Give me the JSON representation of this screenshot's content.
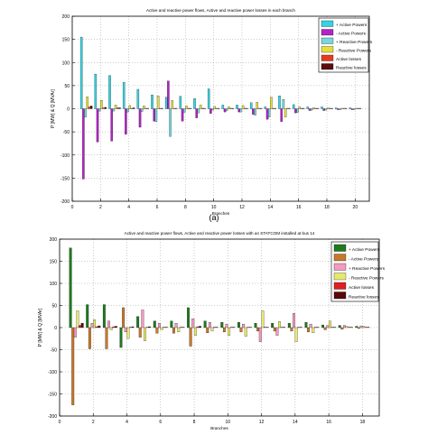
{
  "caption_a": "(a)",
  "chart_data": [
    {
      "type": "bar",
      "title": "Active and reactive power flows, Active and reactive power losses in each branch",
      "xlabel": "Branches",
      "ylabel": "P [MW] & Q [MVAr]",
      "xlim": [
        0,
        21
      ],
      "ylim": [
        -200,
        200
      ],
      "x_ticks": [
        0,
        2,
        4,
        6,
        8,
        10,
        12,
        14,
        16,
        18,
        20
      ],
      "y_ticks": [
        -200,
        -150,
        -100,
        -50,
        0,
        50,
        100,
        150,
        200
      ],
      "grid": true,
      "legend_position": "top-right",
      "categories": [
        1,
        2,
        3,
        4,
        5,
        6,
        7,
        8,
        9,
        10,
        11,
        12,
        13,
        14,
        15,
        16,
        17,
        18,
        19,
        20
      ],
      "series": [
        {
          "name": "+ Active Powers",
          "color": "#35d3e3",
          "values": [
            155,
            75,
            72,
            57,
            42,
            30,
            25,
            27,
            22,
            43,
            8,
            8,
            13,
            4,
            28,
            9,
            4,
            4,
            2,
            2
          ]
        },
        {
          "name": "- Active Powers",
          "color": "#b422c9",
          "values": [
            -152,
            -72,
            -70,
            -55,
            -40,
            -27,
            60,
            -27,
            -20,
            -10,
            -7,
            -7,
            -12,
            -23,
            -28,
            -9,
            -4,
            -4,
            -2,
            -2
          ]
        },
        {
          "name": "+ Reactive Powers",
          "color": "#79d6dc",
          "values": [
            -18,
            -5,
            -5,
            -7,
            -6,
            -28,
            -60,
            -8,
            -9,
            -3,
            -4,
            -7,
            -14,
            -18,
            20,
            -8,
            -3,
            -3,
            -2,
            -2
          ]
        },
        {
          "name": "- Reactive Powers",
          "color": "#e3e03c",
          "values": [
            26,
            18,
            8,
            7,
            6,
            28,
            18,
            6,
            8,
            5,
            4,
            7,
            14,
            25,
            -18,
            4,
            2,
            2,
            1,
            1
          ]
        },
        {
          "name": "Active losses",
          "color": "#e63c1f",
          "values": [
            4,
            2,
            2,
            1,
            1,
            1,
            1,
            1,
            1,
            1,
            1,
            1,
            1,
            1,
            1,
            1,
            1,
            1,
            1,
            1
          ]
        },
        {
          "name": "Reactive losses",
          "color": "#5b0c0c",
          "values": [
            6,
            3,
            2,
            2,
            1,
            1,
            1,
            1,
            1,
            1,
            1,
            1,
            1,
            1,
            1,
            1,
            1,
            1,
            1,
            1
          ]
        }
      ]
    },
    {
      "type": "bar",
      "title": "Active and reactive power flows, Active and reactive power losses with an STATCOM installed at bus 14",
      "xlabel": "Branches",
      "ylabel": "P [MW] & Q [MVAr]",
      "xlim": [
        0,
        19
      ],
      "ylim": [
        -200,
        200
      ],
      "x_ticks": [
        0,
        2,
        4,
        6,
        8,
        10,
        12,
        14,
        16,
        18
      ],
      "y_ticks": [
        -200,
        -150,
        -100,
        -50,
        0,
        50,
        100,
        150,
        200
      ],
      "grid": true,
      "legend_position": "top-right",
      "categories": [
        1,
        2,
        3,
        4,
        5,
        6,
        7,
        8,
        9,
        10,
        11,
        12,
        13,
        14,
        15,
        16,
        17,
        18
      ],
      "series": [
        {
          "name": "+ Active Powers",
          "color": "#1f7a1f",
          "values": [
            180,
            52,
            52,
            -45,
            25,
            15,
            15,
            45,
            15,
            12,
            12,
            10,
            10,
            10,
            12,
            6,
            5,
            3
          ]
        },
        {
          "name": "- Active Powers",
          "color": "#c8782a",
          "values": [
            -175,
            -48,
            -48,
            45,
            -22,
            -13,
            -13,
            -42,
            -12,
            -10,
            -10,
            -8,
            -8,
            -8,
            -10,
            -5,
            -4,
            -2
          ]
        },
        {
          "name": "+ Reactive Powers",
          "color": "#f29ac0",
          "values": [
            -22,
            10,
            15,
            -10,
            40,
            10,
            10,
            20,
            12,
            8,
            8,
            -32,
            -18,
            32,
            8,
            5,
            5,
            4
          ]
        },
        {
          "name": "- Reactive Powers",
          "color": "#e8e870",
          "values": [
            38,
            18,
            -5,
            -25,
            -30,
            -5,
            -10,
            -18,
            -8,
            -18,
            -20,
            38,
            14,
            -32,
            -12,
            15,
            3,
            3
          ]
        },
        {
          "name": "Active losses",
          "color": "#e02020",
          "values": [
            5,
            2,
            2,
            1,
            1,
            1,
            1,
            2,
            1,
            1,
            1,
            1,
            1,
            1,
            1,
            1,
            1,
            1
          ]
        },
        {
          "name": "Reactive losses",
          "color": "#5a0a0a",
          "values": [
            10,
            4,
            3,
            2,
            2,
            1,
            1,
            3,
            1,
            1,
            1,
            1,
            1,
            1,
            1,
            1,
            1,
            1
          ]
        }
      ]
    }
  ]
}
